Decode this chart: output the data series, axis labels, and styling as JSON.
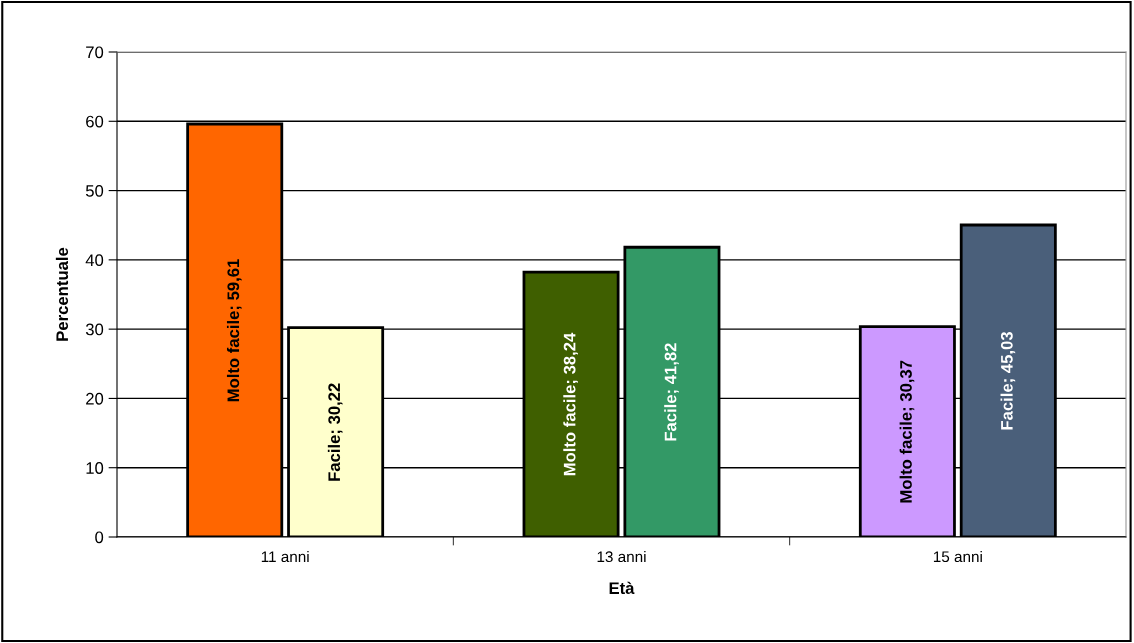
{
  "chart_data": {
    "type": "bar",
    "xlabel": "Età",
    "ylabel": "Percentuale",
    "categories": [
      "11 anni",
      "13 anni",
      "15 anni"
    ],
    "series": [
      {
        "colors": [
          "#ff6600",
          "#3f5f00",
          "#cc99ff"
        ],
        "values": [
          59.61,
          38.24,
          30.37
        ],
        "value_labels": [
          "Molto facile; 59,61",
          "Molto facile; 38,24",
          "Molto facile; 30,37"
        ]
      },
      {
        "colors": [
          "#ffffcc",
          "#339966",
          "#4a5f7a"
        ],
        "values": [
          30.22,
          41.82,
          45.03
        ],
        "value_labels": [
          "Facile; 30,22",
          "Facile; 41,82",
          "Facile; 45,03"
        ]
      }
    ],
    "ylim": [
      0,
      70
    ],
    "yticks": [
      0,
      10,
      20,
      30,
      40,
      50,
      60,
      70
    ],
    "grid": "y",
    "legend": false
  }
}
